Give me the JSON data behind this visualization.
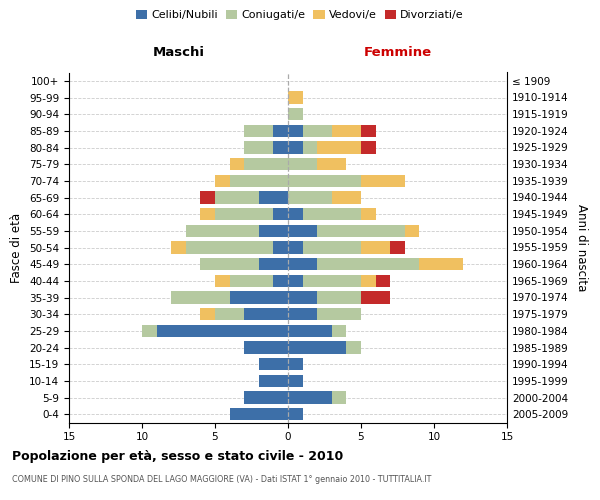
{
  "age_groups": [
    "0-4",
    "5-9",
    "10-14",
    "15-19",
    "20-24",
    "25-29",
    "30-34",
    "35-39",
    "40-44",
    "45-49",
    "50-54",
    "55-59",
    "60-64",
    "65-69",
    "70-74",
    "75-79",
    "80-84",
    "85-89",
    "90-94",
    "95-99",
    "100+"
  ],
  "birth_years": [
    "2005-2009",
    "2000-2004",
    "1995-1999",
    "1990-1994",
    "1985-1989",
    "1980-1984",
    "1975-1979",
    "1970-1974",
    "1965-1969",
    "1960-1964",
    "1955-1959",
    "1950-1954",
    "1945-1949",
    "1940-1944",
    "1935-1939",
    "1930-1934",
    "1925-1929",
    "1920-1924",
    "1915-1919",
    "1910-1914",
    "≤ 1909"
  ],
  "maschi": {
    "celibi": [
      4,
      3,
      2,
      2,
      3,
      9,
      3,
      4,
      1,
      2,
      1,
      2,
      1,
      2,
      0,
      0,
      1,
      1,
      0,
      0,
      0
    ],
    "coniugati": [
      0,
      0,
      0,
      0,
      0,
      1,
      2,
      4,
      3,
      4,
      6,
      5,
      4,
      3,
      4,
      3,
      2,
      2,
      0,
      0,
      0
    ],
    "vedovi": [
      0,
      0,
      0,
      0,
      0,
      0,
      1,
      0,
      1,
      0,
      1,
      0,
      1,
      0,
      1,
      1,
      0,
      0,
      0,
      0,
      0
    ],
    "divorziati": [
      0,
      0,
      0,
      0,
      0,
      0,
      0,
      0,
      0,
      0,
      0,
      0,
      0,
      1,
      0,
      0,
      0,
      0,
      0,
      0,
      0
    ]
  },
  "femmine": {
    "nubili": [
      1,
      3,
      1,
      1,
      4,
      3,
      2,
      2,
      1,
      2,
      1,
      2,
      1,
      0,
      0,
      0,
      1,
      1,
      0,
      0,
      0
    ],
    "coniugate": [
      0,
      1,
      0,
      0,
      1,
      1,
      3,
      3,
      4,
      7,
      4,
      6,
      4,
      3,
      5,
      2,
      1,
      2,
      1,
      0,
      0
    ],
    "vedove": [
      0,
      0,
      0,
      0,
      0,
      0,
      0,
      0,
      1,
      3,
      2,
      1,
      1,
      2,
      3,
      2,
      3,
      2,
      0,
      1,
      0
    ],
    "divorziate": [
      0,
      0,
      0,
      0,
      0,
      0,
      0,
      2,
      1,
      0,
      1,
      0,
      0,
      0,
      0,
      0,
      1,
      1,
      0,
      0,
      0
    ]
  },
  "colors": {
    "celibi_nubili": "#3d6fa8",
    "coniugati": "#b5c9a0",
    "vedovi": "#f0c060",
    "divorziati": "#c42a2a"
  },
  "xlim": 15,
  "title": "Popolazione per età, sesso e stato civile - 2010",
  "subtitle": "COMUNE DI PINO SULLA SPONDA DEL LAGO MAGGIORE (VA) - Dati ISTAT 1° gennaio 2010 - TUTTITALIA.IT",
  "xlabel_left": "Maschi",
  "xlabel_right": "Femmine",
  "ylabel_left": "Fasce di età",
  "ylabel_right": "Anni di nascita",
  "legend": [
    "Celibi/Nubili",
    "Coniugati/e",
    "Vedovi/e",
    "Divorziati/e"
  ]
}
